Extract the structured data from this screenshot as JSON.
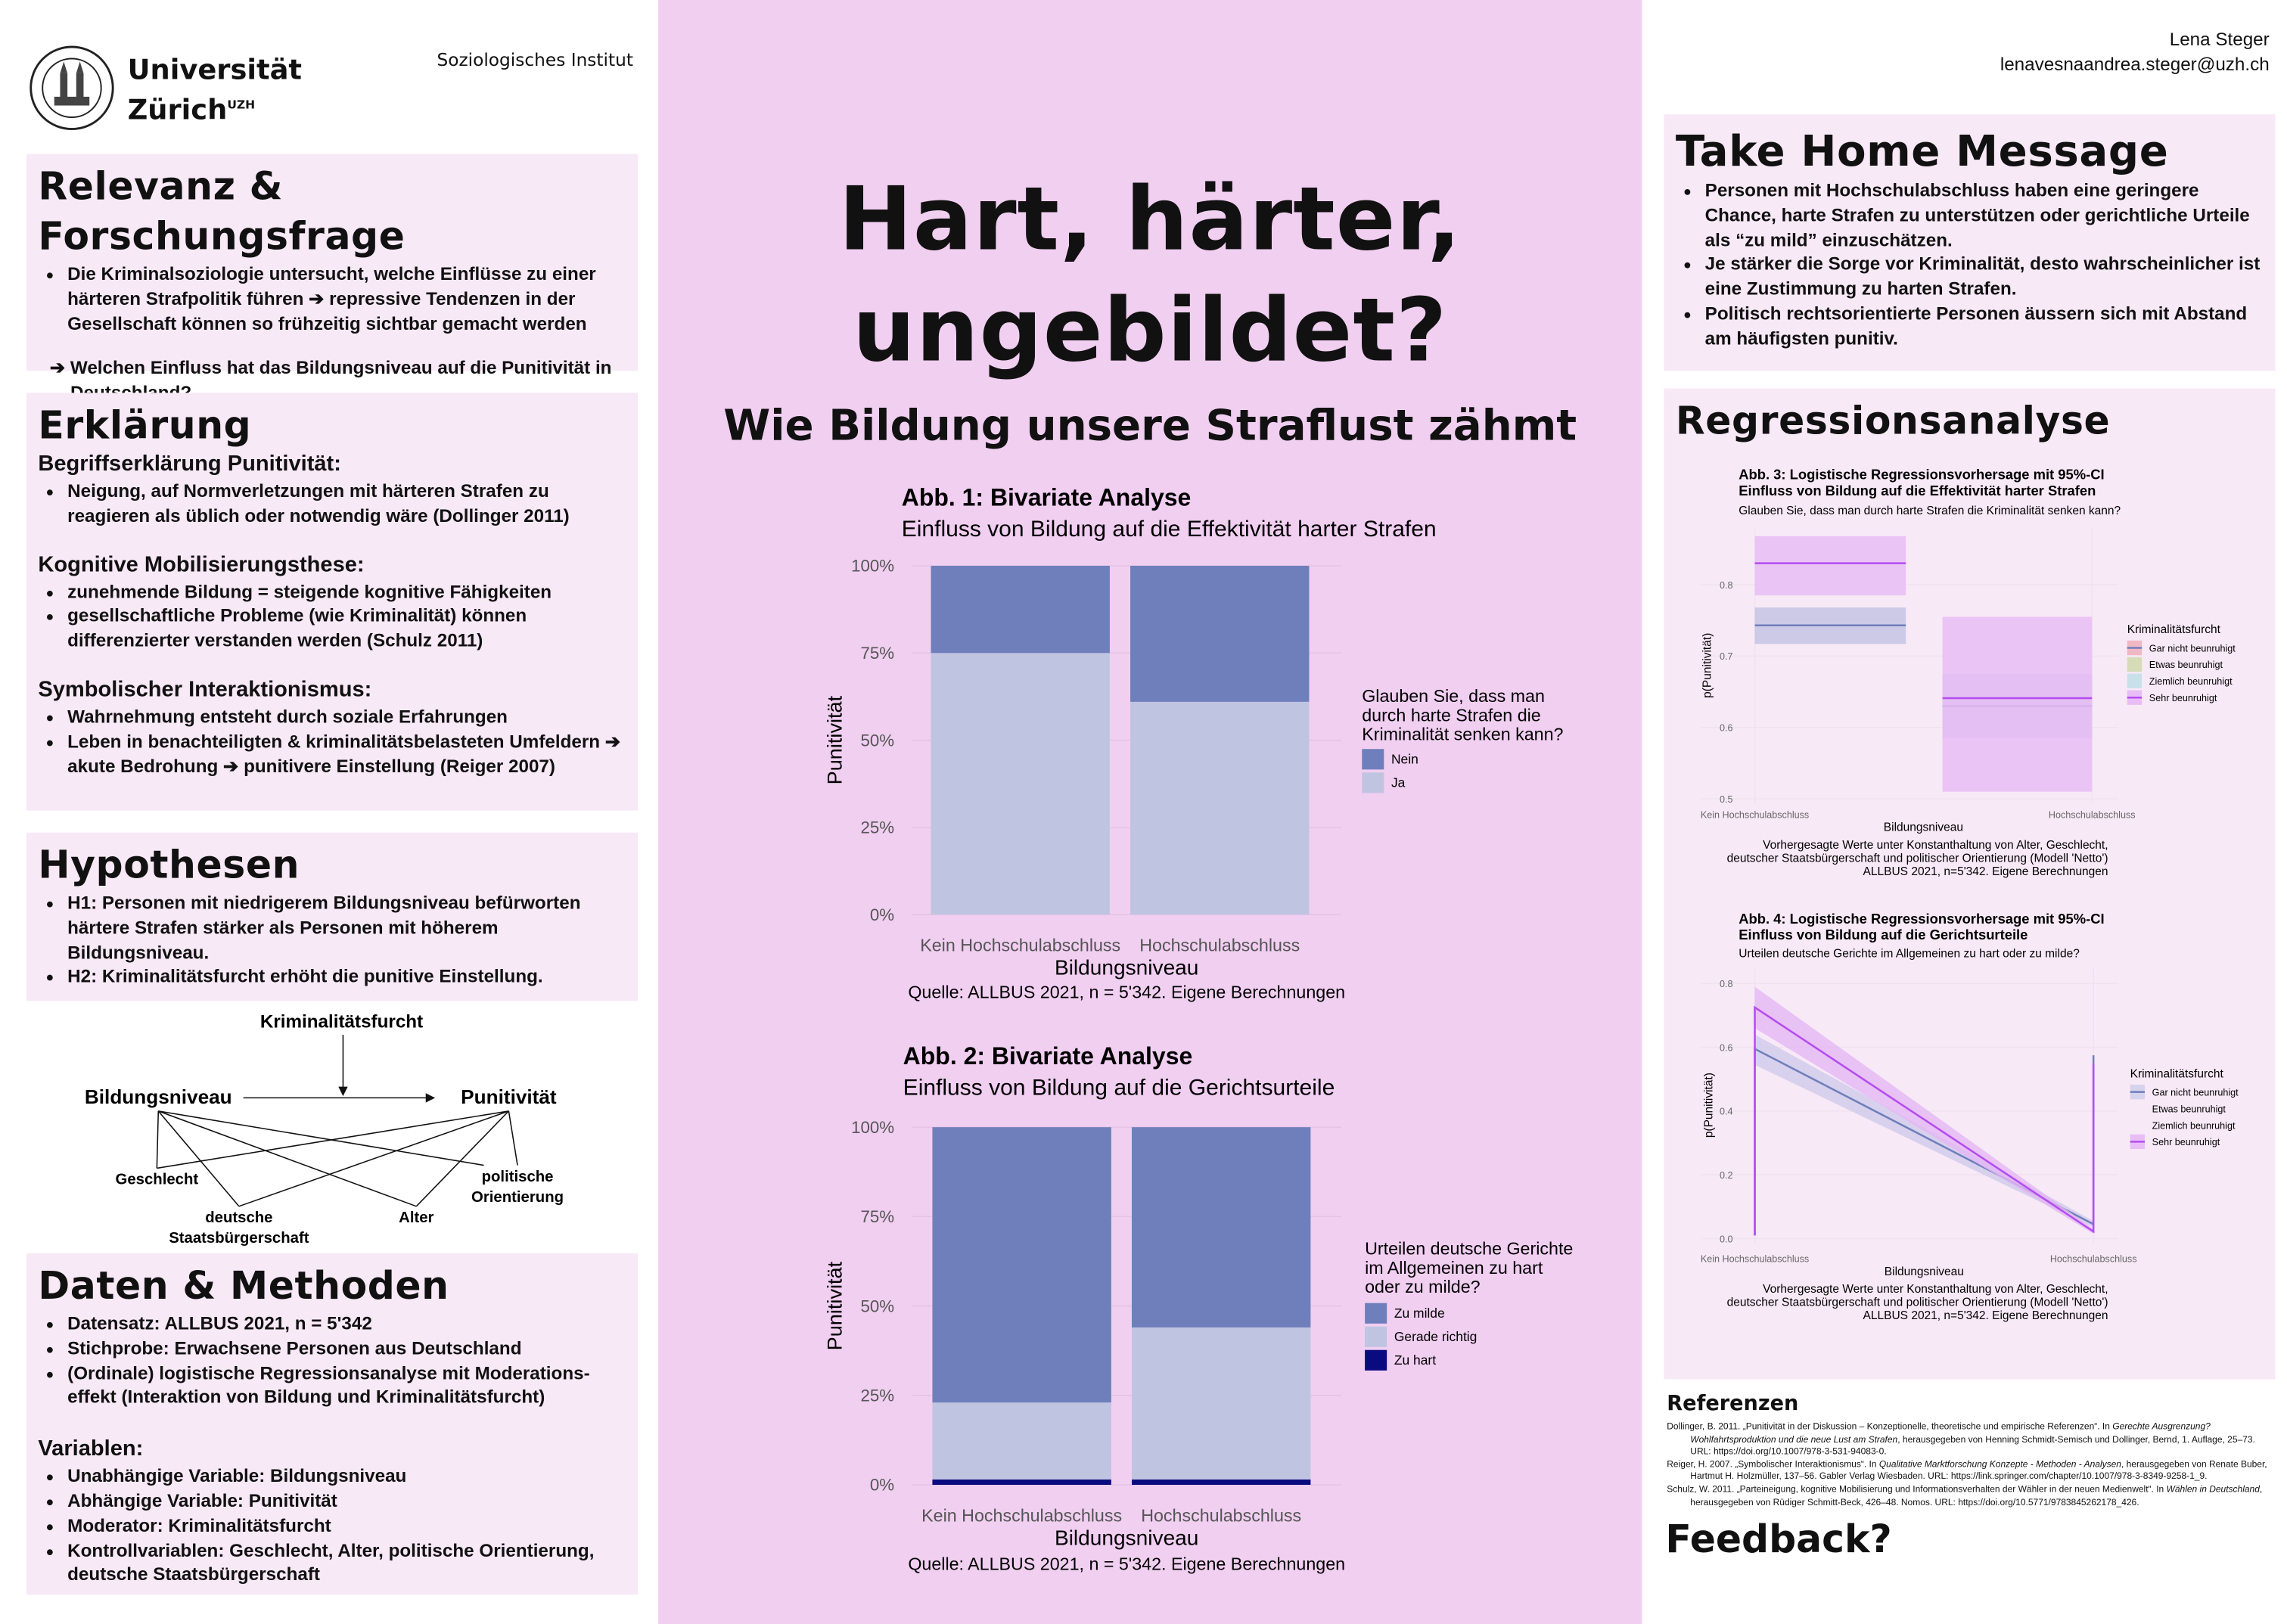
{
  "header": {
    "university_line1": "Universität",
    "university_line2": "Zürich",
    "university_sup": "UZH",
    "institute": "Soziologisches Institut",
    "author": "Lena Steger",
    "email": "lenavesnaandrea.steger@uzh.ch"
  },
  "poster": {
    "title_line1": "Hart, härter,",
    "title_line2": "ungebildet?",
    "subtitle": "Wie Bildung unsere Straflust zähmt"
  },
  "relevanz": {
    "title": "Relevanz & Forschungsfrage",
    "bullets": [
      "Die Kriminalsoziologie untersucht, welche Einflüsse zu einer härteren Strafpolitik führen ➔ repressive Tendenzen in der Gesellschaft können so frühzeitig sichtbar gemacht werden"
    ],
    "question": "➔ Welchen Einfluss hat das Bildungsniveau auf die Punitivität in Deutschland?"
  },
  "erklaerung": {
    "title": "Erklärung",
    "sections": [
      {
        "heading": "Begriffserklärung Punitivität:",
        "bullets": [
          "Neigung, auf Normverletzungen mit härteren Strafen zu reagieren als üblich oder notwendig wäre (Dollinger 2011)"
        ]
      },
      {
        "heading": "Kognitive Mobilisierungsthese:",
        "bullets": [
          "zunehmende Bildung = steigende kognitive Fähigkeiten",
          "gesellschaftliche Probleme (wie Kriminalität) können differenzierter verstanden werden (Schulz 2011)"
        ]
      },
      {
        "heading": "Symbolischer Interaktionismus:",
        "bullets": [
          "Wahrnehmung entsteht durch soziale Erfahrungen",
          "Leben in benachteiligten & kriminalitätsbelasteten Umfeldern ➔ akute Bedrohung ➔ punitivere Einstellung (Reiger 2007)"
        ]
      }
    ]
  },
  "hypothesen": {
    "title": "Hypothesen",
    "bullets": [
      "H1: Personen mit niedrigerem Bildungsniveau befürworten härtere Strafen stärker als Personen mit höherem Bildungsniveau.",
      "H2: Kriminalitätsfurcht erhöht die punitive Einstellung."
    ]
  },
  "diagram": {
    "moderator": "Kriminalitätsfurcht",
    "independent": "Bildungsniveau",
    "dependent": "Punitivität",
    "controls": [
      "Geschlecht",
      "deutsche",
      "Staatsbürgerschaft",
      "Alter",
      "politische",
      "Orientierung"
    ]
  },
  "daten": {
    "title": "Daten & Methoden",
    "bullets": [
      "Datensatz: ALLBUS 2021, n = 5'342",
      "Stichprobe: Erwachsene Personen aus Deutschland",
      "(Ordinale) logistische Regressionsanalyse mit Moderations-effekt (Interaktion von Bildung und Kriminalitätsfurcht)"
    ],
    "variables_heading": "Variablen:",
    "variables": [
      "Unabhängige Variable: Bildungsniveau",
      "Abhängige Variable: Punitivität",
      "Moderator: Kriminalitätsfurcht",
      "Kontrollvariablen: Geschlecht, Alter, politische Orientierung, deutsche Staatsbürgerschaft"
    ]
  },
  "takehome": {
    "title": "Take Home Message",
    "bullets": [
      "Personen mit Hochschulabschluss haben eine geringere Chance, harte Strafen zu unterstützen oder gerichtliche Urteile als “zu mild” einzuschätzen.",
      "Je stärker die Sorge vor Kriminalität, desto wahrscheinlicher ist eine Zustimmung zu harten Strafen.",
      "Politisch rechtsorientierte Personen äussern sich mit Abstand am häufigsten punitiv."
    ]
  },
  "regression": {
    "title": "Regressionsanalyse"
  },
  "references": {
    "title": "Referenzen",
    "items": [
      {
        "pre": "Dollinger, B. 2011. „Punitivität in der Diskussion – Konzeptionelle, theoretische und empirische Referenzen“. In ",
        "italic": "Gerechte Ausgrenzung? Wohlfahrtsproduktion und die neue Lust am Strafen",
        "post": ", herausgegeben von Henning Schmidt-Semisch und Dollinger, Bernd, 1. Auflage, 25–73. URL: ",
        "url": "https://doi.org/10.1007/978-3-531-94083-0"
      },
      {
        "pre": "Reiger, H. 2007. „Symbolischer Interaktionismus“. In ",
        "italic": "Qualitative Marktforschung Konzepte - Methoden - Analysen",
        "post": ", herausgegeben von Renate Buber, Hartmut H. Holzmüller, 137–56. Gabler Verlag Wiesbaden. URL: ",
        "url": "https://link.springer.com/chapter/10.1007/978-3-8349-9258-1_9"
      },
      {
        "pre": "Schulz, W. 2011. „Parteineigung, kognitive Mobilisierung und Informationsverhalten der Wähler in der neuen Medienwelt“. In ",
        "italic": "Wählen in Deutschland",
        "post": ", herausgegeben von Rüdiger Schmitt-Beck, 426–48. Nomos. URL: ",
        "url": "https://doi.org/10.5771/9783845262178_426"
      }
    ]
  },
  "feedback": "Feedback?",
  "chart_data": [
    {
      "type": "bar",
      "stacked": true,
      "title": "Abb. 1: Bivariate Analyse",
      "subtitle": "Einfluss von Bildung auf die Effektivität harter Strafen",
      "xlabel": "Bildungsniveau",
      "ylabel": "Punitivität",
      "caption": "Quelle: ALLBUS 2021, n = 5'342. Eigene Berechnungen",
      "categories": [
        "Kein Hochschulabschluss",
        "Hochschulabschluss"
      ],
      "yticks": [
        "0%",
        "25%",
        "50%",
        "75%",
        "100%"
      ],
      "ylim": [
        0,
        100
      ],
      "legend_title": [
        "Glauben Sie, dass man",
        "durch harte Strafen die",
        "Kriminalität senken kann?"
      ],
      "legend_position": "right",
      "series": [
        {
          "name": "Nein",
          "color": "#6f7fbb",
          "values": [
            25,
            39
          ]
        },
        {
          "name": "Ja",
          "color": "#bfc5e1",
          "values": [
            75,
            61
          ]
        }
      ]
    },
    {
      "type": "bar",
      "stacked": true,
      "title": "Abb. 2: Bivariate Analyse",
      "subtitle": "Einfluss von Bildung auf die Gerichtsurteile",
      "xlabel": "Bildungsniveau",
      "ylabel": "Punitivität",
      "caption": "Quelle: ALLBUS 2021, n = 5'342. Eigene Berechnungen",
      "categories": [
        "Kein Hochschulabschluss",
        "Hochschulabschluss"
      ],
      "yticks": [
        "0%",
        "25%",
        "50%",
        "75%",
        "100%"
      ],
      "ylim": [
        0,
        100
      ],
      "legend_title": [
        "Urteilen deutsche Gerichte",
        "im Allgemeinen zu hart",
        "oder zu milde?"
      ],
      "legend_position": "right",
      "series": [
        {
          "name": "Zu milde",
          "color": "#6f7fbb",
          "values": [
            77,
            56
          ]
        },
        {
          "name": "Gerade richtig",
          "color": "#bfc5e1",
          "values": [
            21.5,
            42.5
          ]
        },
        {
          "name": "Zu hart",
          "color": "#0b0b80",
          "values": [
            1.5,
            1.5
          ]
        }
      ]
    },
    {
      "type": "line",
      "title": [
        "Abb. 3: Logistische Regressionsvorhersage mit 95%-CI",
        "Einfluss von Bildung auf die Effektivität harter Strafen"
      ],
      "subtitle": "Glauben Sie, dass man durch harte Strafen die Kriminalität senken kann?",
      "xlabel": "Bildungsniveau",
      "ylabel": "p(Punitivität)",
      "caption": [
        "Vorhergesagte Werte unter Konstanthaltung von Alter, Geschlecht,",
        "deutscher Staatsbürgerschaft und politischer Orientierung (Modell 'Netto')",
        "ALLBUS 2021, n=5'342. Eigene Berechnungen"
      ],
      "categories": [
        "Kein Hochschulabschluss",
        "Hochschulabschluss"
      ],
      "yticks": [
        "0.5",
        "0.6",
        "0.7",
        "0.8"
      ],
      "ylim": [
        0.5,
        0.88
      ],
      "grid": true,
      "legend_title": "Kriminalitätsfurcht",
      "legend_position": "right",
      "legend": [
        {
          "name": "Gar nicht beunruhigt",
          "fill": "#f0b8c4",
          "line": "#6f7fbb"
        },
        {
          "name": "Etwas beunruhigt",
          "fill": "#d6dcb8",
          "line": ""
        },
        {
          "name": "Ziemlich beunruhigt",
          "fill": "#c8e0ea",
          "line": ""
        },
        {
          "name": "Sehr beunruhigt",
          "fill": "#e8bdf5",
          "line": "#b44cf0"
        }
      ],
      "series": [
        {
          "name": "Gar nicht beunruhigt",
          "color": "#6f7fbb",
          "band": "#c4c4e4",
          "values": [
            0.743,
            0.63
          ],
          "lower": [
            0.717,
            0.585
          ],
          "upper": [
            0.768,
            0.675
          ]
        },
        {
          "name": "Sehr beunruhigt",
          "color": "#b44cf0",
          "band": "#e8bdf5",
          "values": [
            0.83,
            0.641
          ],
          "lower": [
            0.785,
            0.51
          ],
          "upper": [
            0.868,
            0.755
          ]
        }
      ]
    },
    {
      "type": "line",
      "title": [
        "Abb. 4: Logistische Regressionsvorhersage mit 95%-CI",
        "Einfluss von Bildung auf die Gerichtsurteile"
      ],
      "subtitle": "Urteilen deutsche Gerichte im Allgemeinen zu hart oder zu milde?",
      "xlabel": "Bildungsniveau",
      "ylabel": "p(Punitivität)",
      "caption": [
        "Vorhergesagte Werte unter Konstanthaltung von Alter, Geschlecht,",
        "deutscher Staatsbürgerschaft und politischer Orientierung (Modell 'Netto')",
        "ALLBUS 2021, n=5'342. Eigene Berechnungen"
      ],
      "categories": [
        "Kein Hochschulabschluss",
        "Hochschulabschluss"
      ],
      "yticks": [
        "0.0",
        "0.2",
        "0.4",
        "0.6",
        "0.8"
      ],
      "ylim": [
        0,
        0.83
      ],
      "grid": true,
      "legend_title": "Kriminalitätsfurcht",
      "legend_position": "right",
      "legend": [
        {
          "name": "Gar nicht beunruhigt",
          "fill": "#d6d3ec",
          "line": "#6f7fbb"
        },
        {
          "name": "Etwas beunruhigt",
          "fill": "",
          "line": ""
        },
        {
          "name": "Ziemlich beunruhigt",
          "fill": "",
          "line": ""
        },
        {
          "name": "Sehr beunruhigt",
          "fill": "#e8bdf5",
          "line": "#b44cf0"
        }
      ],
      "series": [
        {
          "name": "Gar nicht beunruhigt",
          "color": "#6f7fbb",
          "band": "#cfcbea",
          "values": [
            0.595,
            0.045
          ],
          "lower": [
            0.545,
            0.035
          ],
          "upper": [
            0.64,
            0.055
          ]
        },
        {
          "name": "Sehr beunruhigt",
          "color": "#b44cf0",
          "band": "#e3b6f4",
          "values": [
            0.725,
            0.022
          ],
          "lower": [
            0.66,
            0.015
          ],
          "upper": [
            0.79,
            0.03
          ]
        }
      ]
    }
  ]
}
